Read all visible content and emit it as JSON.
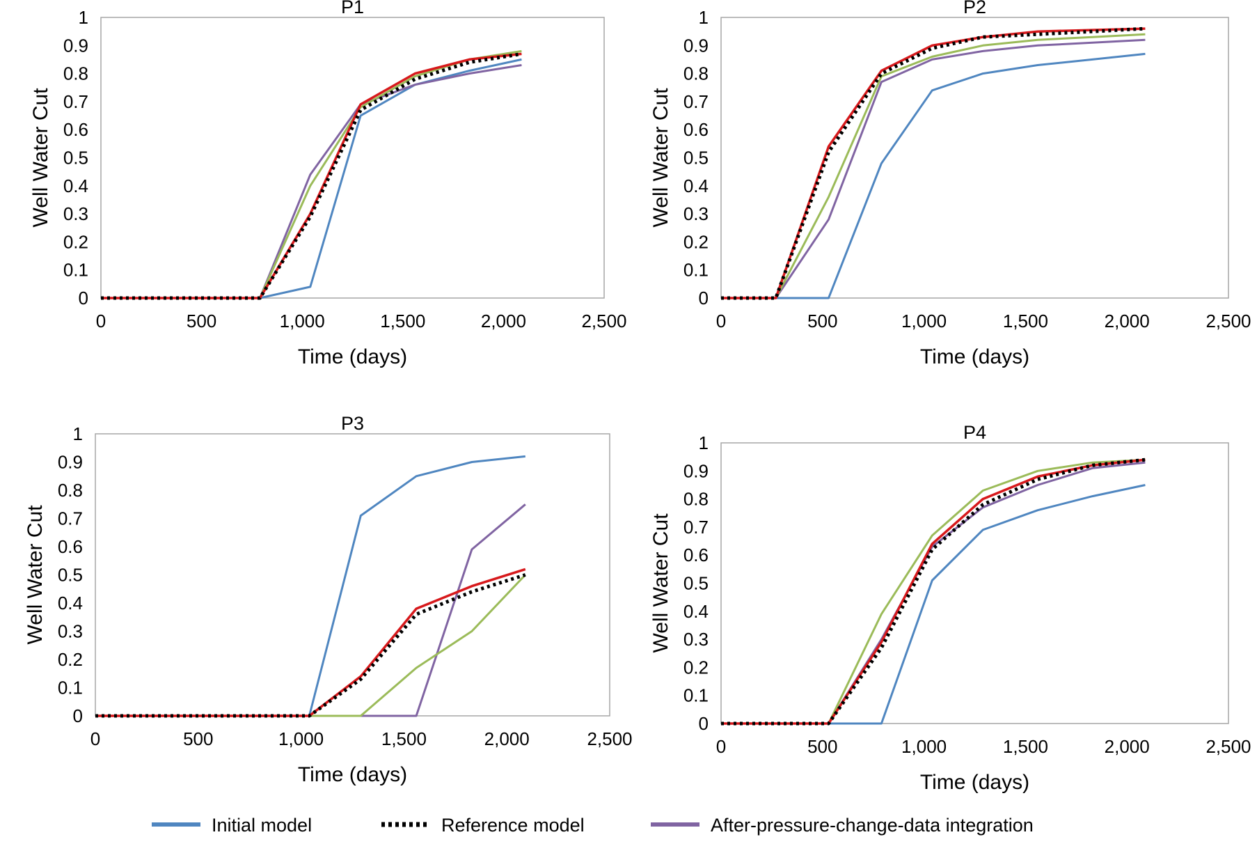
{
  "colors": {
    "initial": "#4f86c0",
    "reference": "#000000",
    "purple": "#8064a2",
    "green": "#9bbb59",
    "red": "#d7191c"
  },
  "legend": [
    {
      "label": "Initial model",
      "series": "initial",
      "style": "solid"
    },
    {
      "label": "Reference model",
      "series": "reference",
      "style": "dotted"
    },
    {
      "label": "After-pressure-change-data integration",
      "series": "purple",
      "style": "solid"
    }
  ],
  "chart_data": [
    {
      "type": "line",
      "title": "P1",
      "xlabel": "Time (days)",
      "ylabel": "Well Water Cut",
      "xlim": [
        0,
        2500
      ],
      "ylim": [
        0,
        1
      ],
      "xticks": [
        "0",
        "500",
        "1,000",
        "1,500",
        "2,000",
        "2,500"
      ],
      "yticks": [
        "0",
        "0.1",
        "0.2",
        "0.3",
        "0.4",
        "0.5",
        "0.6",
        "0.7",
        "0.8",
        "0.9",
        "1"
      ],
      "grid": false,
      "series": [
        {
          "key": "initial",
          "name": "Initial model",
          "x": [
            0,
            790,
            1040,
            1290,
            1560,
            1830,
            2090
          ],
          "y": [
            0,
            0,
            0.04,
            0.65,
            0.76,
            0.81,
            0.85
          ]
        },
        {
          "key": "purple",
          "name": "After-pressure-change-data integration",
          "x": [
            0,
            790,
            1040,
            1290,
            1560,
            1830,
            2090
          ],
          "y": [
            0,
            0,
            0.44,
            0.69,
            0.76,
            0.8,
            0.83
          ]
        },
        {
          "key": "green",
          "x": [
            0,
            790,
            1040,
            1290,
            1560,
            1830,
            2090
          ],
          "y": [
            0,
            0,
            0.4,
            0.68,
            0.79,
            0.85,
            0.88
          ]
        },
        {
          "key": "red",
          "x": [
            0,
            790,
            1040,
            1290,
            1560,
            1830,
            2090
          ],
          "y": [
            0,
            0,
            0.3,
            0.69,
            0.8,
            0.85,
            0.87
          ]
        },
        {
          "key": "reference",
          "name": "Reference model",
          "x": [
            0,
            790,
            1040,
            1290,
            1560,
            1830,
            2090
          ],
          "y": [
            0,
            0,
            0.29,
            0.67,
            0.78,
            0.84,
            0.87
          ]
        }
      ]
    },
    {
      "type": "line",
      "title": "P2",
      "xlabel": "Time (days)",
      "ylabel": "Well Water Cut",
      "xlim": [
        0,
        2500
      ],
      "ylim": [
        0,
        1
      ],
      "xticks": [
        "0",
        "500",
        "1,000",
        "1,500",
        "2,000",
        "2,500"
      ],
      "yticks": [
        "0",
        "0.1",
        "0.2",
        "0.3",
        "0.4",
        "0.5",
        "0.6",
        "0.7",
        "0.8",
        "0.9",
        "1"
      ],
      "grid": false,
      "series": [
        {
          "key": "initial",
          "name": "Initial model",
          "x": [
            0,
            270,
            530,
            790,
            1040,
            1290,
            1560,
            1830,
            2090
          ],
          "y": [
            0,
            0,
            0,
            0.48,
            0.74,
            0.8,
            0.83,
            0.85,
            0.87
          ]
        },
        {
          "key": "purple",
          "name": "After-pressure-change-data integration",
          "x": [
            0,
            270,
            530,
            790,
            1040,
            1290,
            1560,
            1830,
            2090
          ],
          "y": [
            0,
            0,
            0.28,
            0.77,
            0.85,
            0.88,
            0.9,
            0.91,
            0.92
          ]
        },
        {
          "key": "green",
          "x": [
            0,
            270,
            530,
            790,
            1040,
            1290,
            1560,
            1830,
            2090
          ],
          "y": [
            0,
            0,
            0.36,
            0.79,
            0.86,
            0.9,
            0.92,
            0.93,
            0.94
          ]
        },
        {
          "key": "red",
          "x": [
            0,
            270,
            530,
            790,
            1040,
            1290,
            1560,
            1830,
            2090
          ],
          "y": [
            0,
            0,
            0.54,
            0.81,
            0.9,
            0.93,
            0.95,
            0.955,
            0.96
          ]
        },
        {
          "key": "reference",
          "name": "Reference model",
          "x": [
            0,
            270,
            530,
            790,
            1040,
            1290,
            1560,
            1830,
            2090
          ],
          "y": [
            0,
            0,
            0.52,
            0.8,
            0.89,
            0.93,
            0.94,
            0.95,
            0.96
          ]
        }
      ]
    },
    {
      "type": "line",
      "title": "P3",
      "xlabel": "Time (days)",
      "ylabel": "Well Water Cut",
      "xlim": [
        0,
        2500
      ],
      "ylim": [
        0,
        1
      ],
      "xticks": [
        "0",
        "500",
        "1,000",
        "1,500",
        "2,000",
        "2,500"
      ],
      "yticks": [
        "0",
        "0.1",
        "0.2",
        "0.3",
        "0.4",
        "0.5",
        "0.6",
        "0.7",
        "0.8",
        "0.9",
        "1"
      ],
      "grid": false,
      "series": [
        {
          "key": "initial",
          "name": "Initial model",
          "x": [
            0,
            1040,
            1290,
            1560,
            1830,
            2090
          ],
          "y": [
            0,
            0,
            0.71,
            0.85,
            0.9,
            0.92
          ]
        },
        {
          "key": "purple",
          "name": "After-pressure-change-data integration",
          "x": [
            0,
            1040,
            1290,
            1560,
            1830,
            2090
          ],
          "y": [
            0,
            0,
            0,
            0,
            0.59,
            0.75
          ]
        },
        {
          "key": "green",
          "x": [
            0,
            1040,
            1290,
            1560,
            1830,
            2090
          ],
          "y": [
            0,
            0,
            0,
            0.17,
            0.3,
            0.5
          ]
        },
        {
          "key": "red",
          "x": [
            0,
            1040,
            1290,
            1560,
            1830,
            2090
          ],
          "y": [
            0,
            0,
            0.14,
            0.38,
            0.46,
            0.52
          ]
        },
        {
          "key": "reference",
          "name": "Reference model",
          "x": [
            0,
            1040,
            1290,
            1560,
            1830,
            2090
          ],
          "y": [
            0,
            0,
            0.13,
            0.36,
            0.44,
            0.5
          ]
        }
      ]
    },
    {
      "type": "line",
      "title": "P4",
      "xlabel": "Time (days)",
      "ylabel": "Well Water Cut",
      "xlim": [
        0,
        2500
      ],
      "ylim": [
        0,
        1
      ],
      "xticks": [
        "0",
        "500",
        "1,000",
        "1,500",
        "2,000",
        "2,500"
      ],
      "yticks": [
        "0",
        "0.1",
        "0.2",
        "0.3",
        "0.4",
        "0.5",
        "0.6",
        "0.7",
        "0.8",
        "0.9",
        "1"
      ],
      "grid": false,
      "series": [
        {
          "key": "initial",
          "name": "Initial model",
          "x": [
            0,
            530,
            790,
            1040,
            1290,
            1560,
            1830,
            2090
          ],
          "y": [
            0,
            0,
            0,
            0.51,
            0.69,
            0.76,
            0.81,
            0.85
          ]
        },
        {
          "key": "purple",
          "name": "After-pressure-change-data integration",
          "x": [
            0,
            530,
            790,
            1040,
            1290,
            1560,
            1830,
            2090
          ],
          "y": [
            0,
            0,
            0.3,
            0.63,
            0.77,
            0.85,
            0.91,
            0.93
          ]
        },
        {
          "key": "green",
          "x": [
            0,
            530,
            790,
            1040,
            1290,
            1560,
            1830,
            2090
          ],
          "y": [
            0,
            0,
            0.39,
            0.67,
            0.83,
            0.9,
            0.93,
            0.94
          ]
        },
        {
          "key": "red",
          "x": [
            0,
            530,
            790,
            1040,
            1290,
            1560,
            1830,
            2090
          ],
          "y": [
            0,
            0,
            0.29,
            0.64,
            0.8,
            0.88,
            0.92,
            0.94
          ]
        },
        {
          "key": "reference",
          "name": "Reference model",
          "x": [
            0,
            530,
            790,
            1040,
            1290,
            1560,
            1830,
            2090
          ],
          "y": [
            0,
            0,
            0.27,
            0.62,
            0.78,
            0.87,
            0.92,
            0.94
          ]
        }
      ]
    }
  ]
}
